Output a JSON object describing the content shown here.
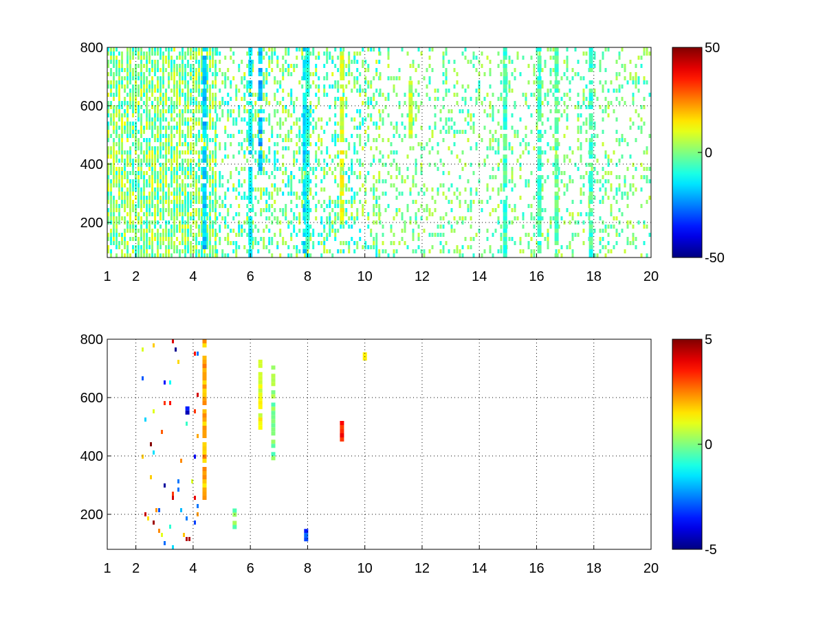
{
  "chart_data": [
    {
      "type": "heatmap",
      "title": "",
      "xlabel": "",
      "ylabel": "",
      "xlim": [
        1,
        20
      ],
      "ylim": [
        80,
        800
      ],
      "xticks": [
        1,
        2,
        4,
        6,
        8,
        10,
        12,
        14,
        16,
        18,
        20
      ],
      "xtick_labels": [
        "1",
        "2",
        "4",
        "6",
        "8",
        "10",
        "12",
        "14",
        "16",
        "18",
        "20"
      ],
      "yticks": [
        200,
        400,
        600,
        800
      ],
      "ytick_labels": [
        "200",
        "400",
        "600",
        "800"
      ],
      "grid": true,
      "colormap": "jet",
      "colorbar": {
        "min": -50,
        "max": 50,
        "ticks": [
          -50,
          0,
          50
        ],
        "tick_labels": [
          "-50",
          "0",
          "50"
        ]
      },
      "notes": "sparse scatter of cells; density high for x<5, scattered vertical streaks for x>5; values mostly between -15 and 15",
      "features": [
        {
          "x0": 1.0,
          "x1": 4.8,
          "density": 0.75,
          "range": [
            -12,
            12
          ]
        },
        {
          "x0": 4.8,
          "x1": 10.5,
          "density": 0.35,
          "range": [
            -15,
            10
          ]
        },
        {
          "x0": 10.5,
          "x1": 20.0,
          "density": 0.22,
          "range": [
            -10,
            8
          ]
        }
      ],
      "streaks": [
        {
          "x": 4.4,
          "y0": 80,
          "y1": 800,
          "value": -18
        },
        {
          "x": 6.0,
          "y0": 80,
          "y1": 800,
          "value": -14
        },
        {
          "x": 6.35,
          "y0": 380,
          "y1": 800,
          "value": -20
        },
        {
          "x": 7.9,
          "y0": 80,
          "y1": 800,
          "value": -15
        },
        {
          "x": 8.0,
          "y0": 80,
          "y1": 800,
          "value": -10
        },
        {
          "x": 9.2,
          "y0": 200,
          "y1": 800,
          "value": 10
        },
        {
          "x": 11.6,
          "y0": 500,
          "y1": 700,
          "value": 6
        },
        {
          "x": 14.9,
          "y0": 80,
          "y1": 800,
          "value": -6
        },
        {
          "x": 16.1,
          "y0": 80,
          "y1": 800,
          "value": -6
        },
        {
          "x": 16.7,
          "y0": 80,
          "y1": 800,
          "value": -4
        },
        {
          "x": 17.9,
          "y0": 80,
          "y1": 800,
          "value": -6
        }
      ]
    },
    {
      "type": "heatmap",
      "title": "",
      "xlabel": "",
      "ylabel": "",
      "xlim": [
        1,
        20
      ],
      "ylim": [
        80,
        800
      ],
      "xticks": [
        1,
        2,
        4,
        6,
        8,
        10,
        12,
        14,
        16,
        18,
        20
      ],
      "xtick_labels": [
        "1",
        "2",
        "4",
        "6",
        "8",
        "10",
        "12",
        "14",
        "16",
        "18",
        "20"
      ],
      "yticks": [
        200,
        400,
        600,
        800
      ],
      "ytick_labels": [
        "200",
        "400",
        "600",
        "800"
      ],
      "grid": true,
      "colormap": "jet",
      "colorbar": {
        "min": -5,
        "max": 5,
        "ticks": [
          -5,
          0,
          5
        ],
        "tick_labels": [
          "-5",
          "0",
          "5"
        ]
      },
      "notes": "very sparse cells; few vertical streaks near x=4.4, 6.35, 6.8; blob at x=9.2 y~490",
      "features": [
        {
          "x0": 2.2,
          "x1": 4.2,
          "density": 0.05,
          "range": [
            -5,
            5
          ]
        }
      ],
      "streaks": [
        {
          "x": 4.4,
          "y0": 260,
          "y1": 800,
          "value": 2
        },
        {
          "x": 6.35,
          "y0": 490,
          "y1": 730,
          "value": 1
        },
        {
          "x": 6.8,
          "y0": 390,
          "y1": 710,
          "value": 0
        },
        {
          "x": 9.2,
          "y0": 460,
          "y1": 520,
          "value": 3.5
        },
        {
          "x": 5.45,
          "y0": 150,
          "y1": 220,
          "value": 0
        },
        {
          "x": 10.0,
          "y0": 730,
          "y1": 755,
          "value": 1.5
        },
        {
          "x": 3.8,
          "y0": 550,
          "y1": 570,
          "value": -4
        },
        {
          "x": 7.95,
          "y0": 120,
          "y1": 150,
          "value": -3
        }
      ]
    }
  ]
}
